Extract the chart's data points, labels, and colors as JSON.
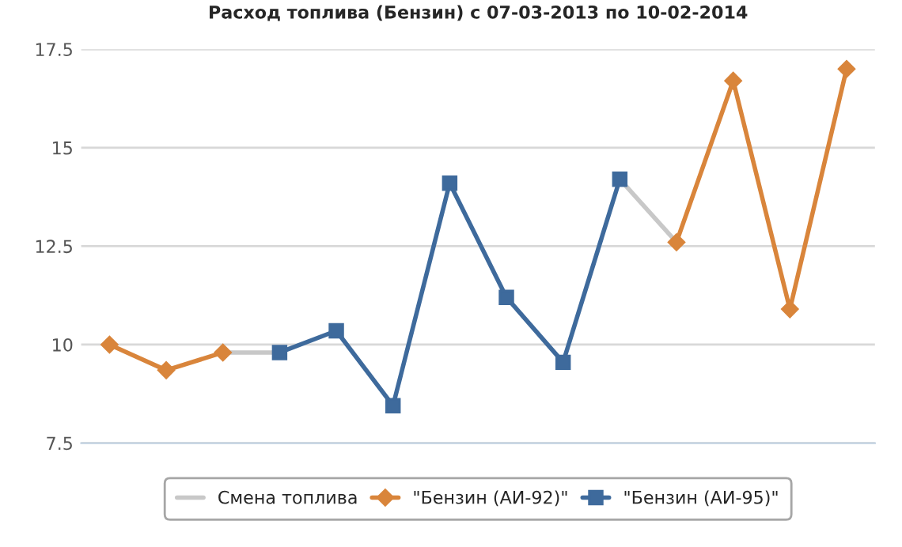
{
  "chart_data": {
    "type": "line",
    "title": "Расход топлива (Бензин) с 07-03-2013 по 10-02-2014",
    "categories": [
      null,
      null,
      null,
      null,
      null,
      null,
      null,
      null,
      null,
      null,
      null,
      null,
      null,
      null
    ],
    "series": [
      {
        "name": "Смена топлива",
        "color": "#c8c8c8",
        "marker": "none",
        "values": [
          null,
          null,
          9.8,
          9.8,
          null,
          null,
          null,
          null,
          null,
          14.2,
          12.6,
          null,
          null,
          null
        ]
      },
      {
        "name": "\"Бензин (АИ-92)\"",
        "color": "#d9853b",
        "marker": "diamond",
        "values": [
          10.0,
          9.35,
          9.8,
          null,
          null,
          null,
          null,
          null,
          null,
          null,
          12.6,
          16.7,
          10.9,
          17.0
        ]
      },
      {
        "name": "\"Бензин (АИ-95)\"",
        "color": "#3e6a9c",
        "marker": "square",
        "values": [
          null,
          null,
          null,
          9.8,
          10.35,
          8.45,
          14.1,
          11.2,
          9.55,
          14.2,
          null,
          null,
          null,
          null
        ]
      }
    ],
    "ylim": [
      7.5,
      17.5
    ],
    "yticks": [
      7.5,
      10,
      12.5,
      15,
      17.5
    ],
    "grid": "y",
    "legend": "bottom",
    "line_style": "solid"
  }
}
